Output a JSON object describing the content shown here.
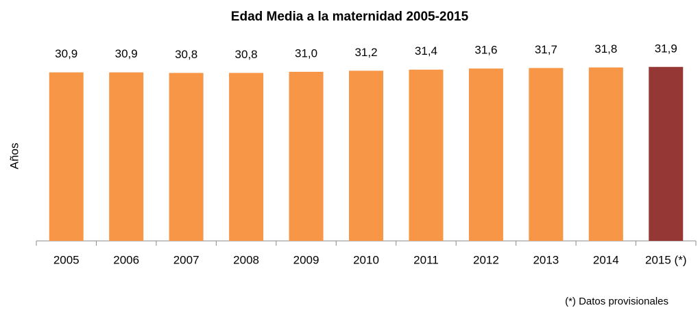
{
  "chart_data": {
    "type": "bar",
    "title": "Edad Media a la maternidad 2005-2015",
    "y_label": "Años",
    "categories": [
      "2005",
      "2006",
      "2007",
      "2008",
      "2009",
      "2010",
      "2011",
      "2012",
      "2013",
      "2014",
      "2015 (*)"
    ],
    "values": [
      30.9,
      30.9,
      30.8,
      30.8,
      31.0,
      31.2,
      31.4,
      31.6,
      31.7,
      31.8,
      31.9
    ],
    "value_labels": [
      "30,9",
      "30,9",
      "30,8",
      "30,8",
      "31,0",
      "31,2",
      "31,4",
      "31,6",
      "31,7",
      "31,8",
      "31,9"
    ],
    "colors": [
      "#f79646",
      "#f79646",
      "#f79646",
      "#f79646",
      "#f79646",
      "#f79646",
      "#f79646",
      "#f79646",
      "#f79646",
      "#f79646",
      "#953735"
    ],
    "ylim": [
      0,
      33
    ],
    "note": "(*) Datos provisionales"
  }
}
